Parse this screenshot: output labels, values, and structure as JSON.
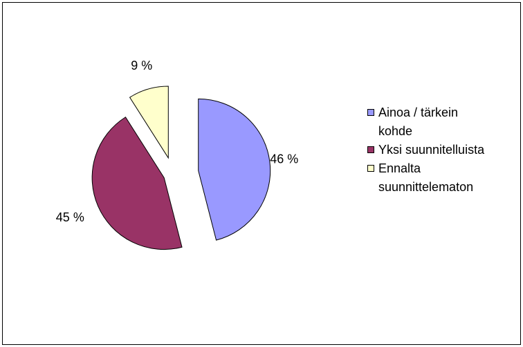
{
  "chart_data": {
    "type": "pie",
    "categories": [
      "Ainoa / tärkein kohde",
      "Yksi suunnitelluista",
      "Ennalta suunnittelematon"
    ],
    "values": [
      46,
      45,
      9
    ],
    "value_labels": [
      "46 %",
      "45 %",
      "9 %"
    ],
    "colors": [
      "#9999ff",
      "#993366",
      "#ffffcc"
    ],
    "legend": "right"
  }
}
